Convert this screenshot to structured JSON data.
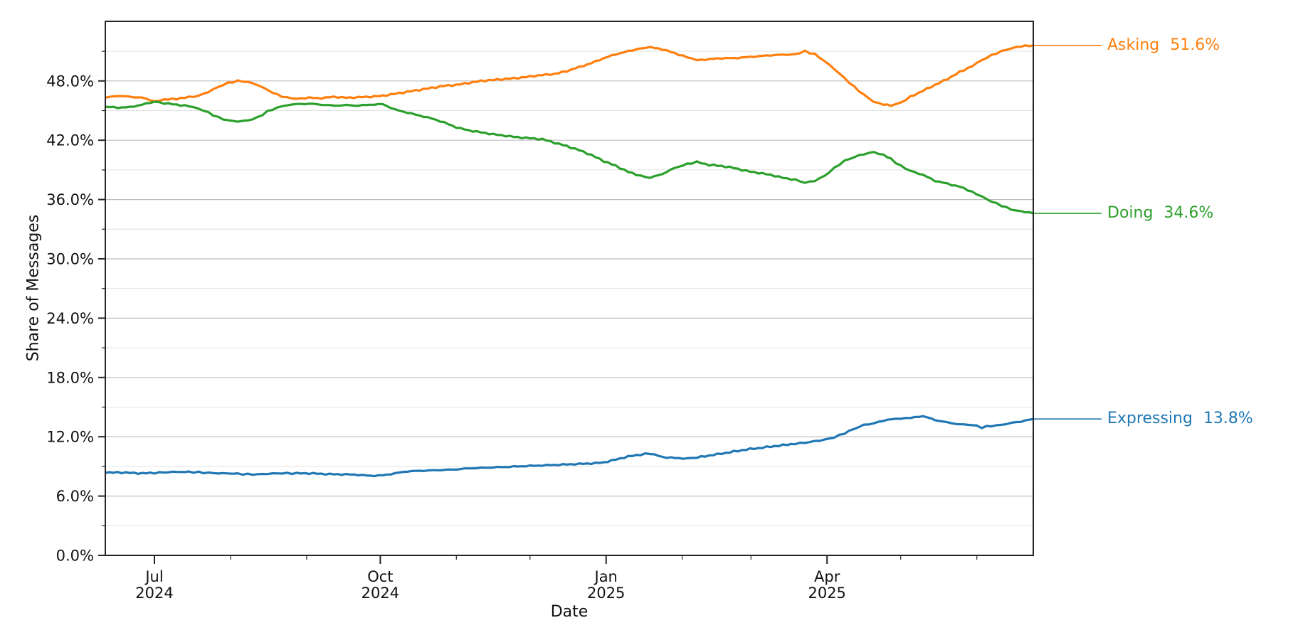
{
  "chart_data": {
    "type": "line",
    "title": "",
    "xlabel": "Date",
    "ylabel": "Share of Messages",
    "x_domain_note": "days since 2024-06-11; right edge ~2025-06-24",
    "x_end_day": 378,
    "ylim": [
      0,
      54.03
    ],
    "grid": "horizontal only; minor every 3%, major every 6%",
    "legend_position": "right-edge leader labels",
    "y_major_ticks": [
      {
        "value": 0,
        "label": "0.0%"
      },
      {
        "value": 6,
        "label": "6.0%"
      },
      {
        "value": 12,
        "label": "12.0%"
      },
      {
        "value": 18,
        "label": "18.0%"
      },
      {
        "value": 24,
        "label": "24.0%"
      },
      {
        "value": 30,
        "label": "30.0%"
      },
      {
        "value": 36,
        "label": "36.0%"
      },
      {
        "value": 42,
        "label": "42.0%"
      },
      {
        "value": 48,
        "label": "48.0%"
      }
    ],
    "y_minor_values": [
      3,
      9,
      15,
      21,
      27,
      33,
      39,
      45,
      51
    ],
    "x_major_ticks": [
      {
        "day": 20,
        "line1": "Jul",
        "line2": "2024"
      },
      {
        "day": 112,
        "line1": "Oct",
        "line2": "2024"
      },
      {
        "day": 204,
        "line1": "Jan",
        "line2": "2025"
      },
      {
        "day": 294,
        "line1": "Apr",
        "line2": "2025"
      }
    ],
    "x_minor_days": [
      51,
      82,
      143,
      173,
      235,
      263,
      324,
      355
    ],
    "series": [
      {
        "name": "Asking",
        "value_label": "51.6%",
        "color": "#ff7f0e",
        "points": [
          [
            0,
            46.3
          ],
          [
            5,
            46.5
          ],
          [
            10,
            46.4
          ],
          [
            15,
            46.3
          ],
          [
            20,
            45.95
          ],
          [
            24,
            46.1
          ],
          [
            29,
            46.2
          ],
          [
            34,
            46.35
          ],
          [
            38,
            46.5
          ],
          [
            42,
            46.9
          ],
          [
            46,
            47.4
          ],
          [
            50,
            47.8
          ],
          [
            54,
            48.0
          ],
          [
            58,
            47.9
          ],
          [
            62,
            47.6
          ],
          [
            66,
            47.1
          ],
          [
            70,
            46.6
          ],
          [
            74,
            46.3
          ],
          [
            78,
            46.2
          ],
          [
            83,
            46.3
          ],
          [
            88,
            46.25
          ],
          [
            93,
            46.4
          ],
          [
            98,
            46.3
          ],
          [
            103,
            46.35
          ],
          [
            108,
            46.4
          ],
          [
            113,
            46.5
          ],
          [
            118,
            46.7
          ],
          [
            123,
            46.9
          ],
          [
            128,
            47.1
          ],
          [
            133,
            47.3
          ],
          [
            138,
            47.5
          ],
          [
            143,
            47.6
          ],
          [
            148,
            47.8
          ],
          [
            153,
            48.0
          ],
          [
            158,
            48.1
          ],
          [
            163,
            48.2
          ],
          [
            168,
            48.3
          ],
          [
            173,
            48.45
          ],
          [
            178,
            48.6
          ],
          [
            183,
            48.7
          ],
          [
            188,
            49.0
          ],
          [
            193,
            49.4
          ],
          [
            198,
            49.8
          ],
          [
            203,
            50.3
          ],
          [
            208,
            50.7
          ],
          [
            213,
            51.0
          ],
          [
            218,
            51.3
          ],
          [
            222,
            51.4
          ],
          [
            227,
            51.2
          ],
          [
            232,
            50.8
          ],
          [
            237,
            50.4
          ],
          [
            241,
            50.1
          ],
          [
            246,
            50.2
          ],
          [
            251,
            50.3
          ],
          [
            256,
            50.3
          ],
          [
            261,
            50.4
          ],
          [
            266,
            50.5
          ],
          [
            271,
            50.6
          ],
          [
            276,
            50.65
          ],
          [
            281,
            50.7
          ],
          [
            285,
            51.0
          ],
          [
            289,
            50.7
          ],
          [
            293,
            50.0
          ],
          [
            297,
            49.2
          ],
          [
            301,
            48.3
          ],
          [
            305,
            47.4
          ],
          [
            309,
            46.6
          ],
          [
            313,
            45.9
          ],
          [
            317,
            45.6
          ],
          [
            320,
            45.5
          ],
          [
            324,
            45.8
          ],
          [
            328,
            46.4
          ],
          [
            333,
            47.0
          ],
          [
            338,
            47.6
          ],
          [
            343,
            48.2
          ],
          [
            348,
            48.9
          ],
          [
            353,
            49.5
          ],
          [
            357,
            50.1
          ],
          [
            361,
            50.6
          ],
          [
            365,
            51.0
          ],
          [
            369,
            51.3
          ],
          [
            373,
            51.5
          ],
          [
            378,
            51.6
          ]
        ]
      },
      {
        "name": "Doing",
        "value_label": "34.6%",
        "color": "#2ca02c",
        "points": [
          [
            0,
            45.4
          ],
          [
            5,
            45.3
          ],
          [
            10,
            45.35
          ],
          [
            15,
            45.6
          ],
          [
            20,
            45.9
          ],
          [
            24,
            45.75
          ],
          [
            29,
            45.6
          ],
          [
            34,
            45.45
          ],
          [
            38,
            45.2
          ],
          [
            42,
            44.8
          ],
          [
            46,
            44.3
          ],
          [
            50,
            44.0
          ],
          [
            54,
            43.9
          ],
          [
            58,
            44.0
          ],
          [
            62,
            44.3
          ],
          [
            66,
            44.9
          ],
          [
            70,
            45.3
          ],
          [
            74,
            45.55
          ],
          [
            78,
            45.65
          ],
          [
            83,
            45.7
          ],
          [
            88,
            45.6
          ],
          [
            93,
            45.5
          ],
          [
            98,
            45.55
          ],
          [
            103,
            45.5
          ],
          [
            108,
            45.6
          ],
          [
            113,
            45.65
          ],
          [
            118,
            45.1
          ],
          [
            123,
            44.8
          ],
          [
            128,
            44.5
          ],
          [
            133,
            44.2
          ],
          [
            138,
            43.8
          ],
          [
            143,
            43.3
          ],
          [
            148,
            43.0
          ],
          [
            153,
            42.8
          ],
          [
            158,
            42.6
          ],
          [
            163,
            42.45
          ],
          [
            168,
            42.3
          ],
          [
            173,
            42.2
          ],
          [
            178,
            42.1
          ],
          [
            183,
            41.75
          ],
          [
            188,
            41.4
          ],
          [
            193,
            41.0
          ],
          [
            198,
            40.5
          ],
          [
            203,
            39.9
          ],
          [
            208,
            39.4
          ],
          [
            213,
            38.8
          ],
          [
            218,
            38.4
          ],
          [
            222,
            38.2
          ],
          [
            227,
            38.6
          ],
          [
            232,
            39.2
          ],
          [
            237,
            39.6
          ],
          [
            241,
            39.8
          ],
          [
            246,
            39.5
          ],
          [
            251,
            39.4
          ],
          [
            256,
            39.2
          ],
          [
            261,
            38.9
          ],
          [
            266,
            38.7
          ],
          [
            271,
            38.5
          ],
          [
            276,
            38.2
          ],
          [
            281,
            38.0
          ],
          [
            285,
            37.7
          ],
          [
            289,
            37.9
          ],
          [
            293,
            38.4
          ],
          [
            297,
            39.2
          ],
          [
            301,
            39.9
          ],
          [
            305,
            40.3
          ],
          [
            309,
            40.6
          ],
          [
            313,
            40.8
          ],
          [
            317,
            40.5
          ],
          [
            320,
            40.1
          ],
          [
            324,
            39.4
          ],
          [
            328,
            38.9
          ],
          [
            333,
            38.5
          ],
          [
            338,
            37.9
          ],
          [
            343,
            37.6
          ],
          [
            348,
            37.3
          ],
          [
            353,
            36.8
          ],
          [
            357,
            36.3
          ],
          [
            361,
            35.8
          ],
          [
            365,
            35.4
          ],
          [
            369,
            35.0
          ],
          [
            373,
            34.8
          ],
          [
            378,
            34.6
          ]
        ]
      },
      {
        "name": "Expressing",
        "value_label": "13.8%",
        "color": "#1f77b4",
        "points": [
          [
            0,
            8.35
          ],
          [
            5,
            8.4
          ],
          [
            10,
            8.35
          ],
          [
            15,
            8.3
          ],
          [
            20,
            8.35
          ],
          [
            24,
            8.4
          ],
          [
            29,
            8.45
          ],
          [
            34,
            8.45
          ],
          [
            38,
            8.4
          ],
          [
            42,
            8.35
          ],
          [
            46,
            8.3
          ],
          [
            50,
            8.3
          ],
          [
            54,
            8.25
          ],
          [
            58,
            8.2
          ],
          [
            62,
            8.2
          ],
          [
            66,
            8.25
          ],
          [
            70,
            8.3
          ],
          [
            74,
            8.3
          ],
          [
            78,
            8.3
          ],
          [
            83,
            8.3
          ],
          [
            88,
            8.25
          ],
          [
            93,
            8.2
          ],
          [
            98,
            8.2
          ],
          [
            103,
            8.15
          ],
          [
            108,
            8.05
          ],
          [
            113,
            8.1
          ],
          [
            118,
            8.3
          ],
          [
            123,
            8.5
          ],
          [
            128,
            8.55
          ],
          [
            133,
            8.6
          ],
          [
            138,
            8.65
          ],
          [
            143,
            8.7
          ],
          [
            148,
            8.8
          ],
          [
            153,
            8.85
          ],
          [
            158,
            8.9
          ],
          [
            163,
            8.95
          ],
          [
            168,
            9.0
          ],
          [
            173,
            9.05
          ],
          [
            178,
            9.1
          ],
          [
            183,
            9.15
          ],
          [
            188,
            9.2
          ],
          [
            193,
            9.25
          ],
          [
            198,
            9.3
          ],
          [
            203,
            9.4
          ],
          [
            208,
            9.7
          ],
          [
            213,
            10.0
          ],
          [
            218,
            10.2
          ],
          [
            222,
            10.3
          ],
          [
            227,
            9.95
          ],
          [
            232,
            9.85
          ],
          [
            237,
            9.8
          ],
          [
            241,
            9.9
          ],
          [
            246,
            10.1
          ],
          [
            251,
            10.3
          ],
          [
            256,
            10.5
          ],
          [
            261,
            10.7
          ],
          [
            266,
            10.85
          ],
          [
            271,
            11.0
          ],
          [
            276,
            11.15
          ],
          [
            281,
            11.3
          ],
          [
            285,
            11.4
          ],
          [
            289,
            11.55
          ],
          [
            293,
            11.7
          ],
          [
            297,
            11.95
          ],
          [
            301,
            12.35
          ],
          [
            305,
            12.8
          ],
          [
            309,
            13.2
          ],
          [
            313,
            13.35
          ],
          [
            317,
            13.65
          ],
          [
            320,
            13.75
          ],
          [
            324,
            13.85
          ],
          [
            328,
            13.9
          ],
          [
            333,
            14.1
          ],
          [
            338,
            13.7
          ],
          [
            343,
            13.45
          ],
          [
            348,
            13.25
          ],
          [
            353,
            13.2
          ],
          [
            357,
            12.95
          ],
          [
            361,
            13.1
          ],
          [
            365,
            13.2
          ],
          [
            369,
            13.4
          ],
          [
            373,
            13.55
          ],
          [
            378,
            13.8
          ]
        ]
      }
    ]
  }
}
